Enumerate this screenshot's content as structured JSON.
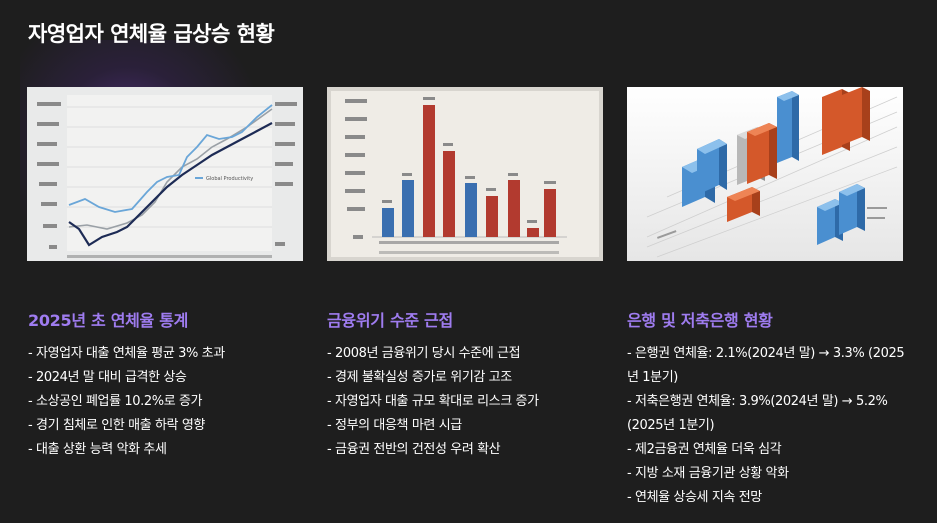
{
  "page": {
    "title": "자영업자 연체율 급상승 현황"
  },
  "columns": [
    {
      "heading": "2025년 초 연체율 통계",
      "image": {
        "caption": "Global Productivity"
      },
      "bullets": [
        "- 자영업자 대출 연체율 평균 3% 초과",
        "- 2024년 말 대비 급격한 상승",
        "- 소상공인 폐업률 10.2%로 증가",
        "- 경기 침체로 인한 매출 하락 영향",
        "- 대출 상환 능력 악화 추세"
      ]
    },
    {
      "heading": "금융위기 수준 근접",
      "image": {},
      "bullets": [
        "- 2008년 금융위기 당시 수준에 근접",
        "- 경제 불확실성 증가로 위기감 고조",
        "- 자영업자 대출 규모 확대로 리스크 증가",
        "- 정부의 대응책 마련 시급",
        "- 금융권 전반의 건전성 우려 확산"
      ]
    },
    {
      "heading": "은행 및 저축은행 현황",
      "image": {},
      "bullets": [
        "- 은행권 연체율: 2.1%(2024년 말) → 3.3% (2025년 1분기)",
        "- 저축은행권 연체율: 3.9%(2024년 말) → 5.2% (2025년 1분기)",
        "- 제2금융권 연체율 더욱 심각",
        "- 지방 소재 금융기관 상황 악화",
        "- 연체율 상승세 지속 전망"
      ]
    }
  ],
  "colors": {
    "background": "#1e1e1e",
    "heading_accent": "#9f7cf0",
    "bar_red": "#b23a2f",
    "bar_blue": "#3a6fb0",
    "bar_orange": "#d4582a"
  }
}
